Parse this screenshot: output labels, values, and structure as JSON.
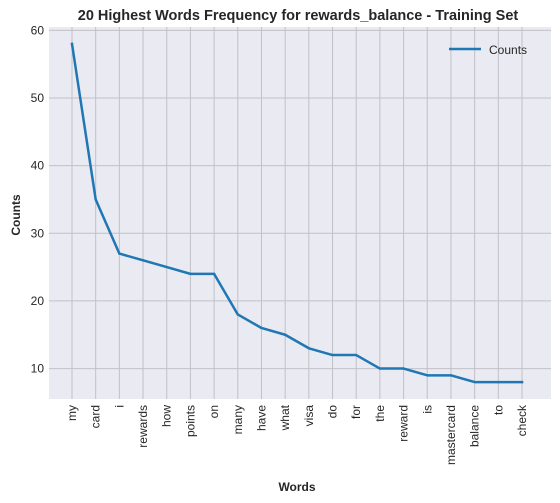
{
  "chart_data": {
    "type": "line",
    "title": "20 Highest Words Frequency for rewards_balance - Training Set",
    "xlabel": "Words",
    "ylabel": "Counts",
    "categories": [
      "my",
      "card",
      "i",
      "rewards",
      "how",
      "points",
      "on",
      "many",
      "have",
      "what",
      "visa",
      "do",
      "for",
      "the",
      "reward",
      "is",
      "mastercard",
      "balance",
      "to",
      "check"
    ],
    "series": [
      {
        "name": "Counts",
        "values": [
          58,
          35,
          27,
          26,
          25,
          24,
          24,
          18,
          16,
          15,
          13,
          12,
          12,
          10,
          10,
          9,
          9,
          8,
          8,
          8
        ],
        "color": "#1f77b4"
      }
    ],
    "yticks": [
      10,
      20,
      30,
      40,
      50,
      60
    ],
    "ylim": [
      5.5,
      60.5
    ],
    "grid": true,
    "legend_position": "top-right",
    "background": "#eaeaf2"
  }
}
